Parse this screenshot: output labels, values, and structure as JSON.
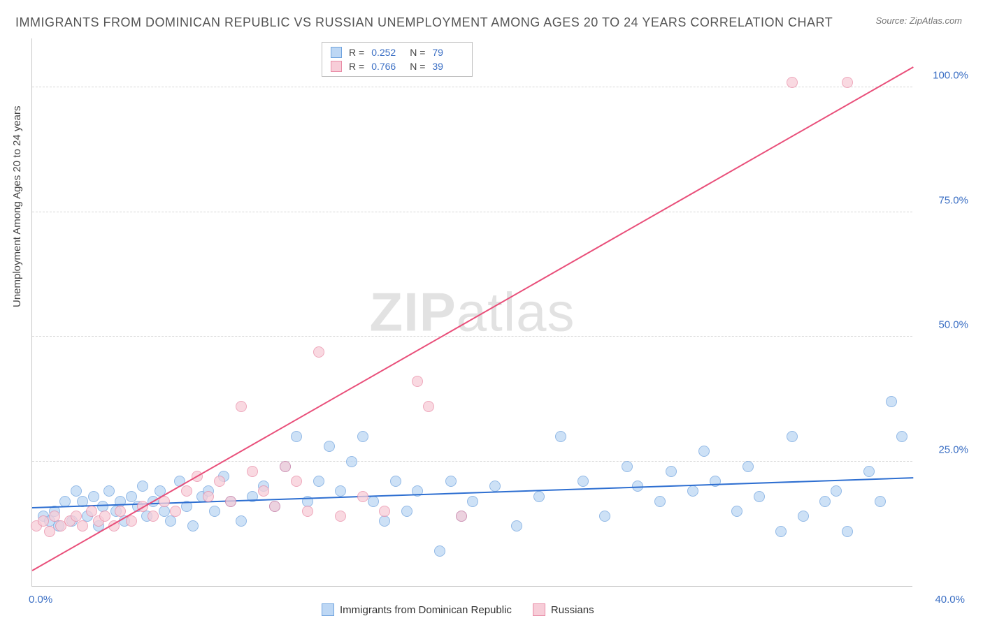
{
  "title": "IMMIGRANTS FROM DOMINICAN REPUBLIC VS RUSSIAN UNEMPLOYMENT AMONG AGES 20 TO 24 YEARS CORRELATION CHART",
  "source": "Source: ZipAtlas.com",
  "ylabel": "Unemployment Among Ages 20 to 24 years",
  "watermark_bold": "ZIP",
  "watermark_rest": "atlas",
  "xlim": [
    0,
    40
  ],
  "ylim": [
    0,
    110
  ],
  "yticks": [
    {
      "v": 25,
      "label": "25.0%"
    },
    {
      "v": 50,
      "label": "50.0%"
    },
    {
      "v": 75,
      "label": "75.0%"
    },
    {
      "v": 100,
      "label": "100.0%"
    }
  ],
  "xtick_min": "0.0%",
  "xtick_max": "40.0%",
  "series": [
    {
      "name": "Immigrants from Dominican Republic",
      "fill": "#bdd7f4",
      "stroke": "#6fa3de",
      "line_color": "#2e6fd1",
      "r": "0.252",
      "n": "79",
      "trend": {
        "x1": 0,
        "y1": 15.5,
        "x2": 40,
        "y2": 21.5
      },
      "points": [
        [
          0.5,
          14
        ],
        [
          0.8,
          13
        ],
        [
          1.0,
          15
        ],
        [
          1.2,
          12
        ],
        [
          1.5,
          17
        ],
        [
          1.8,
          13
        ],
        [
          2.0,
          19
        ],
        [
          2.3,
          17
        ],
        [
          2.5,
          14
        ],
        [
          2.8,
          18
        ],
        [
          3.0,
          12
        ],
        [
          3.2,
          16
        ],
        [
          3.5,
          19
        ],
        [
          3.8,
          15
        ],
        [
          4.0,
          17
        ],
        [
          4.2,
          13
        ],
        [
          4.5,
          18
        ],
        [
          4.8,
          16
        ],
        [
          5.0,
          20
        ],
        [
          5.2,
          14
        ],
        [
          5.5,
          17
        ],
        [
          5.8,
          19
        ],
        [
          6.0,
          15
        ],
        [
          6.3,
          13
        ],
        [
          6.7,
          21
        ],
        [
          7.0,
          16
        ],
        [
          7.3,
          12
        ],
        [
          7.7,
          18
        ],
        [
          8.0,
          19
        ],
        [
          8.3,
          15
        ],
        [
          8.7,
          22
        ],
        [
          9.0,
          17
        ],
        [
          9.5,
          13
        ],
        [
          10.0,
          18
        ],
        [
          10.5,
          20
        ],
        [
          11.0,
          16
        ],
        [
          11.5,
          24
        ],
        [
          12.0,
          30
        ],
        [
          12.5,
          17
        ],
        [
          13.0,
          21
        ],
        [
          13.5,
          28
        ],
        [
          14.0,
          19
        ],
        [
          14.5,
          25
        ],
        [
          15.0,
          30
        ],
        [
          15.5,
          17
        ],
        [
          16.0,
          13
        ],
        [
          16.5,
          21
        ],
        [
          17.0,
          15
        ],
        [
          17.5,
          19
        ],
        [
          18.5,
          7
        ],
        [
          19.0,
          21
        ],
        [
          19.5,
          14
        ],
        [
          20.0,
          17
        ],
        [
          21.0,
          20
        ],
        [
          22.0,
          12
        ],
        [
          23.0,
          18
        ],
        [
          24.0,
          30
        ],
        [
          25.0,
          21
        ],
        [
          26.0,
          14
        ],
        [
          27.0,
          24
        ],
        [
          27.5,
          20
        ],
        [
          28.5,
          17
        ],
        [
          29.0,
          23
        ],
        [
          30.0,
          19
        ],
        [
          30.5,
          27
        ],
        [
          31.0,
          21
        ],
        [
          32.0,
          15
        ],
        [
          32.5,
          24
        ],
        [
          33.0,
          18
        ],
        [
          34.0,
          11
        ],
        [
          34.5,
          30
        ],
        [
          35.0,
          14
        ],
        [
          36.0,
          17
        ],
        [
          36.5,
          19
        ],
        [
          37.0,
          11
        ],
        [
          38.0,
          23
        ],
        [
          38.5,
          17
        ],
        [
          39.0,
          37
        ],
        [
          39.5,
          30
        ]
      ]
    },
    {
      "name": "Russians",
      "fill": "#f7cdd8",
      "stroke": "#e98ba6",
      "line_color": "#e94f7a",
      "r": "0.766",
      "n": "39",
      "trend": {
        "x1": 0,
        "y1": 3,
        "x2": 40,
        "y2": 104
      },
      "points": [
        [
          0.2,
          12
        ],
        [
          0.5,
          13
        ],
        [
          0.8,
          11
        ],
        [
          1.0,
          14
        ],
        [
          1.3,
          12
        ],
        [
          1.7,
          13
        ],
        [
          2.0,
          14
        ],
        [
          2.3,
          12
        ],
        [
          2.7,
          15
        ],
        [
          3.0,
          13
        ],
        [
          3.3,
          14
        ],
        [
          3.7,
          12
        ],
        [
          4.0,
          15
        ],
        [
          4.5,
          13
        ],
        [
          5.0,
          16
        ],
        [
          5.5,
          14
        ],
        [
          6.0,
          17
        ],
        [
          6.5,
          15
        ],
        [
          7.0,
          19
        ],
        [
          7.5,
          22
        ],
        [
          8.0,
          18
        ],
        [
          8.5,
          21
        ],
        [
          9.0,
          17
        ],
        [
          9.5,
          36
        ],
        [
          10.0,
          23
        ],
        [
          10.5,
          19
        ],
        [
          11.0,
          16
        ],
        [
          11.5,
          24
        ],
        [
          12.0,
          21
        ],
        [
          12.5,
          15
        ],
        [
          13.0,
          47
        ],
        [
          14.0,
          14
        ],
        [
          15.0,
          18
        ],
        [
          16.0,
          15
        ],
        [
          17.5,
          41
        ],
        [
          18.0,
          36
        ],
        [
          19.5,
          14
        ],
        [
          34.5,
          101
        ],
        [
          37.0,
          101
        ]
      ]
    }
  ]
}
